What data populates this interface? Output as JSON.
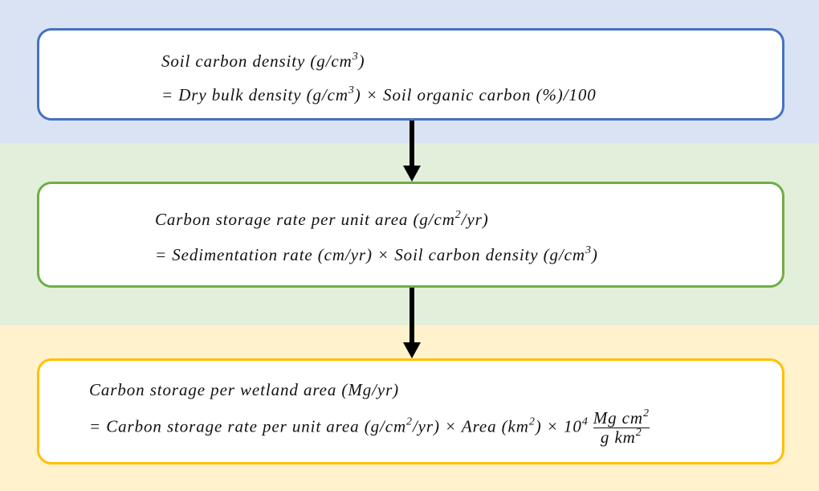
{
  "boxes": [
    {
      "lines": [
        [
          {
            "text": "Soil carbon density (g/cm"
          },
          {
            "sup": "3"
          },
          {
            "text": ")"
          }
        ],
        [
          {
            "text": "= Dry bulk density (g/cm"
          },
          {
            "sup": "3"
          },
          {
            "text": ") × Soil organic carbon (%)/100"
          }
        ]
      ]
    },
    {
      "lines": [
        [
          {
            "text": "Carbon storage rate per unit area (g/cm"
          },
          {
            "sup": "2"
          },
          {
            "text": "/yr)"
          }
        ],
        [
          {
            "text": "= Sedimentation rate (cm/yr) × Soil carbon density (g/cm"
          },
          {
            "sup": "3"
          },
          {
            "text": ")"
          }
        ]
      ]
    },
    {
      "lines": [
        [
          {
            "text": "Carbon storage per wetland area (Mg/yr)"
          }
        ],
        [
          {
            "text": "= Carbon storage rate per unit area (g/cm"
          },
          {
            "sup": "2"
          },
          {
            "text": "/yr) × Area (km"
          },
          {
            "sup": "2"
          },
          {
            "text": ") × 10"
          },
          {
            "sup": "4"
          },
          {
            "num": [
              {
                "text": "Mg cm"
              },
              {
                "sup": "2"
              }
            ],
            "den": [
              {
                "text": "g km"
              },
              {
                "sup": "2"
              }
            ]
          }
        ]
      ]
    }
  ]
}
